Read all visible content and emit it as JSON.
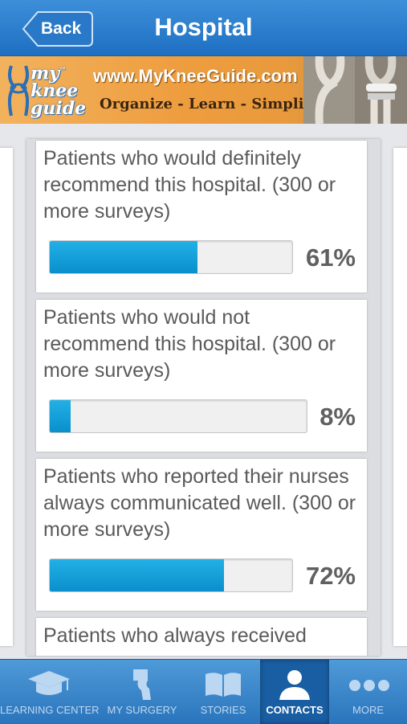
{
  "header": {
    "title": "Hospital",
    "back_label": "Back"
  },
  "banner": {
    "logo_line1": "my",
    "logo_line2": "knee",
    "logo_line3": "guide",
    "logo_tm": "™",
    "url": "www.MyKneeGuide.com",
    "tagline": "Organize - Learn - Simplify"
  },
  "metrics": [
    {
      "text": "Patients who would definitely recommend this hospital. (300 or more surveys)",
      "percent": 61,
      "value_label": "61%"
    },
    {
      "text": "Patients who would not recommend this hospital. (300 or more surveys)",
      "percent": 8,
      "value_label": "8%"
    },
    {
      "text": "Patients who reported their nurses always communicated well. (300 or more surveys)",
      "percent": 72,
      "value_label": "72%"
    },
    {
      "text": "Patients who always received",
      "percent": null,
      "value_label": ""
    }
  ],
  "tabs": [
    {
      "label": "LEARNING CENTER",
      "icon": "graduation-cap-icon"
    },
    {
      "label": "MY SURGERY",
      "icon": "knee-implant-icon"
    },
    {
      "label": "STORIES",
      "icon": "book-icon"
    },
    {
      "label": "CONTACTS",
      "icon": "person-icon",
      "active": true
    },
    {
      "label": "MORE",
      "icon": "more-dots-icon"
    }
  ],
  "colors": {
    "header": "#2a7fd0",
    "bar_fill": "#1aa0dc",
    "banner": "#ee9d3e",
    "tab_active": "#195da2"
  }
}
